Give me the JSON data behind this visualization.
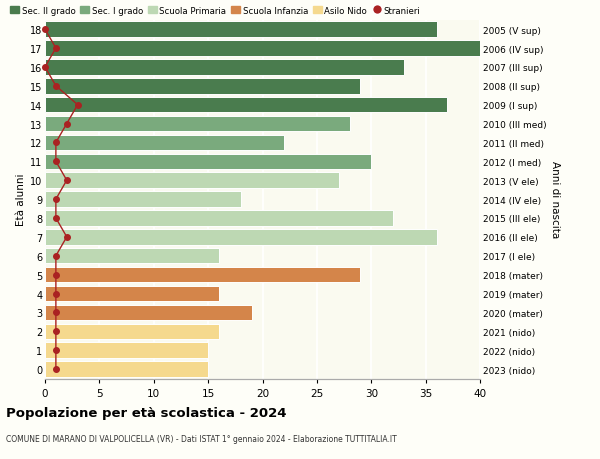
{
  "ages": [
    18,
    17,
    16,
    15,
    14,
    13,
    12,
    11,
    10,
    9,
    8,
    7,
    6,
    5,
    4,
    3,
    2,
    1,
    0
  ],
  "years": [
    "2005 (V sup)",
    "2006 (IV sup)",
    "2007 (III sup)",
    "2008 (II sup)",
    "2009 (I sup)",
    "2010 (III med)",
    "2011 (II med)",
    "2012 (I med)",
    "2013 (V ele)",
    "2014 (IV ele)",
    "2015 (III ele)",
    "2016 (II ele)",
    "2017 (I ele)",
    "2018 (mater)",
    "2019 (mater)",
    "2020 (mater)",
    "2021 (nido)",
    "2022 (nido)",
    "2023 (nido)"
  ],
  "values": [
    36,
    40,
    33,
    29,
    37,
    28,
    22,
    30,
    27,
    18,
    32,
    36,
    16,
    29,
    16,
    19,
    16,
    15,
    15
  ],
  "stranieri": [
    0,
    1,
    0,
    1,
    3,
    2,
    1,
    1,
    2,
    1,
    1,
    2,
    1,
    1,
    1,
    1,
    1,
    1,
    1
  ],
  "categories": {
    "sec2": [
      18,
      17,
      16,
      15,
      14
    ],
    "sec1": [
      13,
      12,
      11
    ],
    "primaria": [
      10,
      9,
      8,
      7,
      6
    ],
    "infanzia": [
      5,
      4,
      3
    ],
    "nido": [
      2,
      1,
      0
    ]
  },
  "colors": {
    "sec2": "#4a7c4e",
    "sec1": "#7aaa7d",
    "primaria": "#bdd8b3",
    "infanzia": "#d4854a",
    "nido": "#f5d98e",
    "stranieri": "#aa2222"
  },
  "legend_labels": [
    "Sec. II grado",
    "Sec. I grado",
    "Scuola Primaria",
    "Scuola Infanzia",
    "Asilo Nido",
    "Stranieri"
  ],
  "ylabel_left": "Età alunni",
  "ylabel_right": "Anni di nascita",
  "title": "Popolazione per età scolastica - 2024",
  "subtitle": "COMUNE DI MARANO DI VALPOLICELLA (VR) - Dati ISTAT 1° gennaio 2024 - Elaborazione TUTTITALIA.IT",
  "xlim": [
    0,
    40
  ],
  "xticks": [
    0,
    5,
    10,
    15,
    20,
    25,
    30,
    35,
    40
  ],
  "bg_color": "#fefef8",
  "bar_bg_color": "#fafaf0"
}
